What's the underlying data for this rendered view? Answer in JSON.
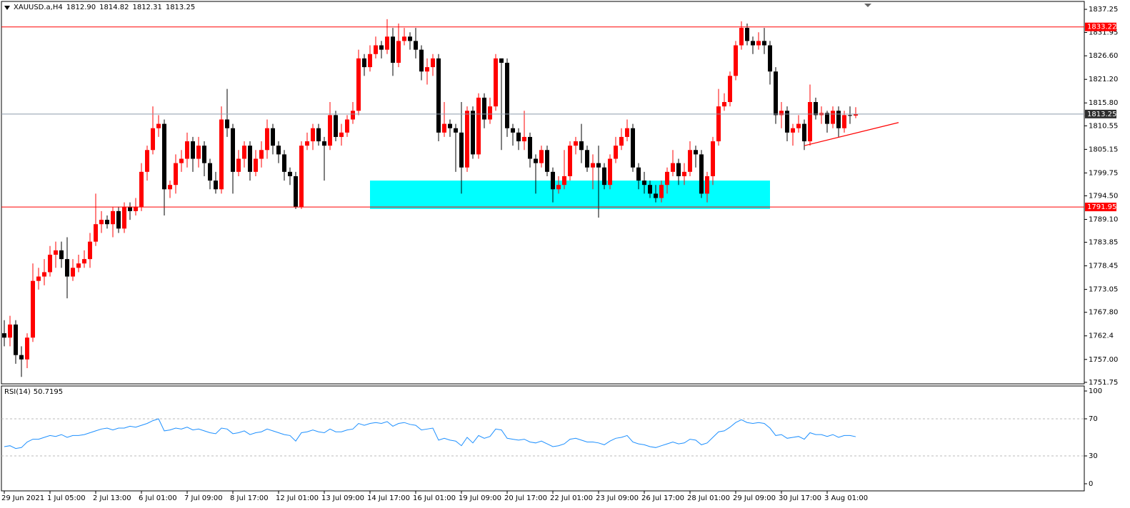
{
  "header": {
    "symbol": "XAUUSD.a,H4",
    "ohlc_labels": [
      "1812.90",
      "1814.82",
      "1812.31",
      "1813.25"
    ]
  },
  "chart_data": [
    {
      "type": "candlestick",
      "categories": [
        "29 Jun 2021",
        null,
        null,
        null,
        null,
        null,
        null,
        null,
        "1 Jul 05:00",
        null,
        null,
        null,
        null,
        null,
        null,
        null,
        "2 Jul 13:00",
        null,
        null,
        null,
        null,
        null,
        null,
        null,
        "6 Jul 01:00",
        null,
        null,
        null,
        null,
        null,
        null,
        null,
        "7 Jul 09:00",
        null,
        null,
        null,
        null,
        null,
        null,
        null,
        "8 Jul 17:00",
        null,
        null,
        null,
        null,
        null,
        null,
        null,
        "12 Jul 01:00",
        null,
        null,
        null,
        null,
        null,
        null,
        null,
        "13 Jul 09:00",
        null,
        null,
        null,
        null,
        null,
        null,
        null,
        "14 Jul 17:00",
        null,
        null,
        null,
        null,
        null,
        null,
        null,
        "16 Jul 01:00",
        null,
        null,
        null,
        null,
        null,
        null,
        null,
        "19 Jul 09:00",
        null,
        null,
        null,
        null,
        null,
        null,
        null,
        "20 Jul 17:00",
        null,
        null,
        null,
        null,
        null,
        null,
        null,
        "22 Jul 01:00",
        null,
        null,
        null,
        null,
        null,
        null,
        null,
        "23 Jul 09:00",
        null,
        null,
        null,
        null,
        null,
        null,
        null,
        "26 Jul 17:00",
        null,
        null,
        null,
        null,
        null,
        null,
        null,
        "28 Jul 01:00",
        null,
        null,
        null,
        null,
        null,
        null,
        null,
        "29 Jul 09:00",
        null,
        null,
        null,
        null,
        null,
        null,
        null,
        "30 Jul 17:00",
        null,
        null,
        null,
        null,
        null,
        null,
        null,
        "3 Aug 01:00",
        null,
        null,
        null,
        null,
        null
      ],
      "open": [
        1763,
        1762,
        1765,
        1758,
        1757,
        1762,
        1775,
        1776,
        1777,
        1781,
        1782,
        1780,
        1776,
        1778,
        1779,
        1780,
        1784,
        1788,
        1789,
        1788,
        1791,
        1787,
        1792,
        1791,
        1792,
        1800,
        1805,
        1810,
        1811,
        1796,
        1797,
        1802,
        1803,
        1807,
        1803,
        1806,
        1802,
        1798,
        1796,
        1812,
        1810,
        1800,
        1803,
        1806,
        1800,
        1803,
        1805,
        1810,
        1806,
        1804,
        1800,
        1799,
        1792,
        1806,
        1807,
        1810,
        1807,
        1806,
        1813,
        1808,
        1809,
        1812,
        1814,
        1826,
        1824,
        1827,
        1829,
        1828,
        1831,
        1825,
        1830,
        1831,
        1830,
        1828,
        1823,
        1824,
        1826,
        1809,
        1811,
        1810,
        1809,
        1801,
        1814,
        1804,
        1817,
        1812,
        1815,
        1826,
        1825,
        1810,
        1809,
        1807,
        1808,
        1803,
        1802,
        1805,
        1800,
        1796,
        1797,
        1799,
        1806,
        1807,
        1805,
        1801,
        1802,
        1801,
        1797,
        1803,
        1806,
        1808,
        1810,
        1801,
        1798,
        1797,
        1795,
        1794,
        1797,
        1800,
        1802,
        1799,
        1800,
        1805,
        1804,
        1795,
        1799,
        1807,
        1815,
        1816,
        1822,
        1829,
        1833,
        1830,
        1829,
        1830,
        1829,
        1823,
        1813,
        1814,
        1809,
        1810,
        1811,
        1807,
        1816,
        1813,
        1813.5,
        1811,
        1814,
        1810,
        1813,
        1812.9
      ],
      "high": [
        1766,
        1767,
        1766,
        1760,
        1763,
        1779,
        1778,
        1780,
        1783,
        1784,
        1784,
        1785,
        1780,
        1781,
        1782,
        1786,
        1795,
        1791,
        1790,
        1792,
        1792,
        1793,
        1793,
        1794,
        1802,
        1806,
        1815,
        1813,
        1812,
        1798,
        1804,
        1805,
        1809,
        1808,
        1808,
        1807,
        1803,
        1800,
        1815,
        1819,
        1811,
        1805,
        1807,
        1807,
        1805,
        1807,
        1812,
        1811,
        1807,
        1805,
        1801,
        1800,
        1807,
        1809,
        1811,
        1811,
        1808,
        1816,
        1814,
        1811,
        1813,
        1816,
        1828,
        1827,
        1829,
        1831,
        1830,
        1835,
        1833,
        1834,
        1833,
        1832,
        1833,
        1829,
        1826,
        1827,
        1827,
        1816,
        1812,
        1811,
        1816,
        1815,
        1815,
        1818,
        1818,
        1817,
        1827,
        1826,
        1826,
        1811,
        1810,
        1814,
        1809,
        1804,
        1806,
        1806,
        1801,
        1799,
        1805,
        1807,
        1808,
        1811,
        1806,
        1804,
        1806,
        1802,
        1804,
        1808,
        1810,
        1812,
        1811,
        1802,
        1800,
        1798,
        1797,
        1798,
        1801,
        1805,
        1803,
        1802,
        1807,
        1806,
        1805,
        1800,
        1808,
        1819,
        1818,
        1823,
        1830,
        1834.5,
        1834,
        1831,
        1832,
        1833,
        1830,
        1824,
        1816,
        1815,
        1811,
        1813,
        1812,
        1820,
        1817,
        1815,
        1814,
        1815,
        1815,
        1814,
        1815,
        1814.82
      ],
      "low": [
        1760,
        1760,
        1756,
        1753,
        1755,
        1761,
        1773,
        1774,
        1776,
        1778,
        1778,
        1771,
        1775,
        1777,
        1778,
        1778,
        1783,
        1786,
        1787,
        1785,
        1786,
        1786,
        1789,
        1790,
        1791,
        1798,
        1804,
        1808,
        1790,
        1794,
        1795,
        1800,
        1801,
        1800,
        1801,
        1799,
        1796,
        1795,
        1795,
        1808,
        1795,
        1799,
        1801,
        1798,
        1799,
        1801,
        1803,
        1804,
        1802,
        1798,
        1797,
        1791.5,
        1791.5,
        1805,
        1805,
        1806,
        1798,
        1805,
        1807,
        1806,
        1808,
        1811,
        1813,
        1822,
        1823,
        1826,
        1826,
        1827,
        1822,
        1824,
        1829,
        1828,
        1826,
        1821,
        1820,
        1822,
        1807,
        1808,
        1808,
        1800,
        1795,
        1800,
        1803,
        1803,
        1810,
        1811,
        1814,
        1805,
        1808,
        1806,
        1805,
        1805,
        1801,
        1795,
        1801,
        1799,
        1793,
        1795,
        1796,
        1798,
        1804,
        1802,
        1800,
        1796,
        1789.5,
        1796,
        1796,
        1802,
        1805,
        1807,
        1800,
        1796,
        1795,
        1794,
        1793,
        1793,
        1795,
        1799,
        1797,
        1797,
        1799,
        1801,
        1794,
        1793,
        1797,
        1806,
        1814,
        1815,
        1821,
        1828,
        1829,
        1827,
        1828,
        1827,
        1820,
        1811,
        1810,
        1807,
        1806,
        1809,
        1805,
        1806,
        1812,
        1811,
        1809,
        1810,
        1808,
        1809,
        1811,
        1812.31
      ],
      "close": [
        1762,
        1765,
        1758,
        1757,
        1762,
        1775,
        1776,
        1777,
        1781,
        1782,
        1780,
        1776,
        1778,
        1779,
        1780,
        1784,
        1788,
        1789,
        1788,
        1791,
        1787,
        1792,
        1791,
        1792,
        1800,
        1805,
        1810,
        1811,
        1796,
        1797,
        1802,
        1803,
        1807,
        1803,
        1806,
        1802,
        1798,
        1796,
        1812,
        1810,
        1800,
        1803,
        1806,
        1800,
        1803,
        1805,
        1810,
        1806,
        1804,
        1800,
        1799,
        1792,
        1806,
        1807,
        1810,
        1807,
        1806,
        1813,
        1808,
        1809,
        1812,
        1814,
        1826,
        1824,
        1827,
        1829,
        1828,
        1831,
        1825,
        1830,
        1831,
        1830,
        1828,
        1823,
        1824,
        1826,
        1809,
        1811,
        1810,
        1809,
        1801,
        1814,
        1804,
        1817,
        1812,
        1815,
        1826,
        1825,
        1810,
        1809,
        1807,
        1808,
        1803,
        1802,
        1805,
        1800,
        1796,
        1797,
        1799,
        1806,
        1807,
        1805,
        1801,
        1802,
        1801,
        1797,
        1803,
        1806,
        1808,
        1810,
        1801,
        1798,
        1797,
        1795,
        1794,
        1797,
        1800,
        1802,
        1799,
        1800,
        1805,
        1804,
        1795,
        1799,
        1807,
        1815,
        1816,
        1822,
        1829,
        1833,
        1830,
        1829,
        1830,
        1829,
        1823,
        1813,
        1814,
        1809,
        1810,
        1811,
        1807,
        1816,
        1813,
        1813.5,
        1811,
        1814,
        1810,
        1813,
        1812.9,
        1813.25
      ],
      "up_color": "#ff0000",
      "down_color": "#000000",
      "ylim": [
        1751.4,
        1838.9
      ],
      "yticks": [
        1837.25,
        1831.95,
        {
          "value": 1826.6,
          "label": "1826.60"
        },
        {
          "value": 1821.2,
          "label": "1821.20"
        },
        {
          "value": 1815.8,
          "label": "1815.80"
        },
        1810.55,
        1805.15,
        1799.75,
        {
          "value": 1794.5,
          "label": "1794.50"
        },
        {
          "value": 1789.1,
          "label": "1789.10"
        },
        1783.85,
        1778.45,
        1773.05,
        {
          "value": 1767.8,
          "label": "1767.80"
        },
        1762.4,
        {
          "value": 1757,
          "label": "1757.00"
        },
        1751.75
      ],
      "levels": [
        {
          "value": 1833.22,
          "color": "#ff0000"
        },
        {
          "value": 1791.95,
          "color": "#ff0000"
        }
      ],
      "last_price": {
        "value": 1813.25,
        "color": "#8c9aab"
      },
      "zone": {
        "from": 64,
        "to": 134,
        "low": 1791.5,
        "high": 1798,
        "color": "#00ffff"
      },
      "trendline": {
        "start": [
          140,
          1806
        ],
        "end": [
          156.5,
          1811.3
        ],
        "color": "#ff0000"
      }
    },
    {
      "type": "line",
      "title": "RSI(14)",
      "color": "#1e90ff",
      "values": [
        40,
        41,
        38,
        39,
        45,
        48,
        48,
        50,
        52,
        51,
        53,
        50,
        52,
        52,
        53,
        55,
        57,
        59,
        60,
        58,
        60,
        60,
        62,
        61,
        63,
        65,
        68,
        70,
        57,
        58,
        60,
        59,
        61,
        58,
        59,
        57,
        55,
        54,
        60,
        59,
        54,
        55,
        57,
        53,
        55,
        56,
        59,
        57,
        55,
        53,
        52,
        46,
        55,
        56,
        58,
        56,
        55,
        59,
        56,
        56,
        58,
        59,
        65,
        63,
        65,
        66,
        65,
        67,
        62,
        65,
        66,
        64,
        63,
        58,
        59,
        60,
        47,
        49,
        47,
        46,
        41,
        50,
        44,
        52,
        49,
        51,
        59,
        58,
        49,
        48,
        47,
        48,
        45,
        44,
        46,
        43,
        40,
        41,
        43,
        48,
        49,
        47,
        45,
        45,
        44,
        42,
        46,
        49,
        50,
        52,
        45,
        43,
        42,
        40,
        39,
        41,
        43,
        45,
        43,
        44,
        48,
        47,
        42,
        44,
        50,
        56,
        57,
        61,
        66,
        69,
        66,
        65,
        66,
        65,
        60,
        52,
        53,
        49,
        50,
        51,
        48,
        55,
        53,
        53,
        51,
        53,
        50,
        52,
        52,
        50.7195
      ],
      "ylim": [
        -7.7,
        105.4
      ],
      "yticks": [
        0,
        30,
        70,
        100
      ],
      "levels": [
        30,
        70
      ]
    }
  ]
}
